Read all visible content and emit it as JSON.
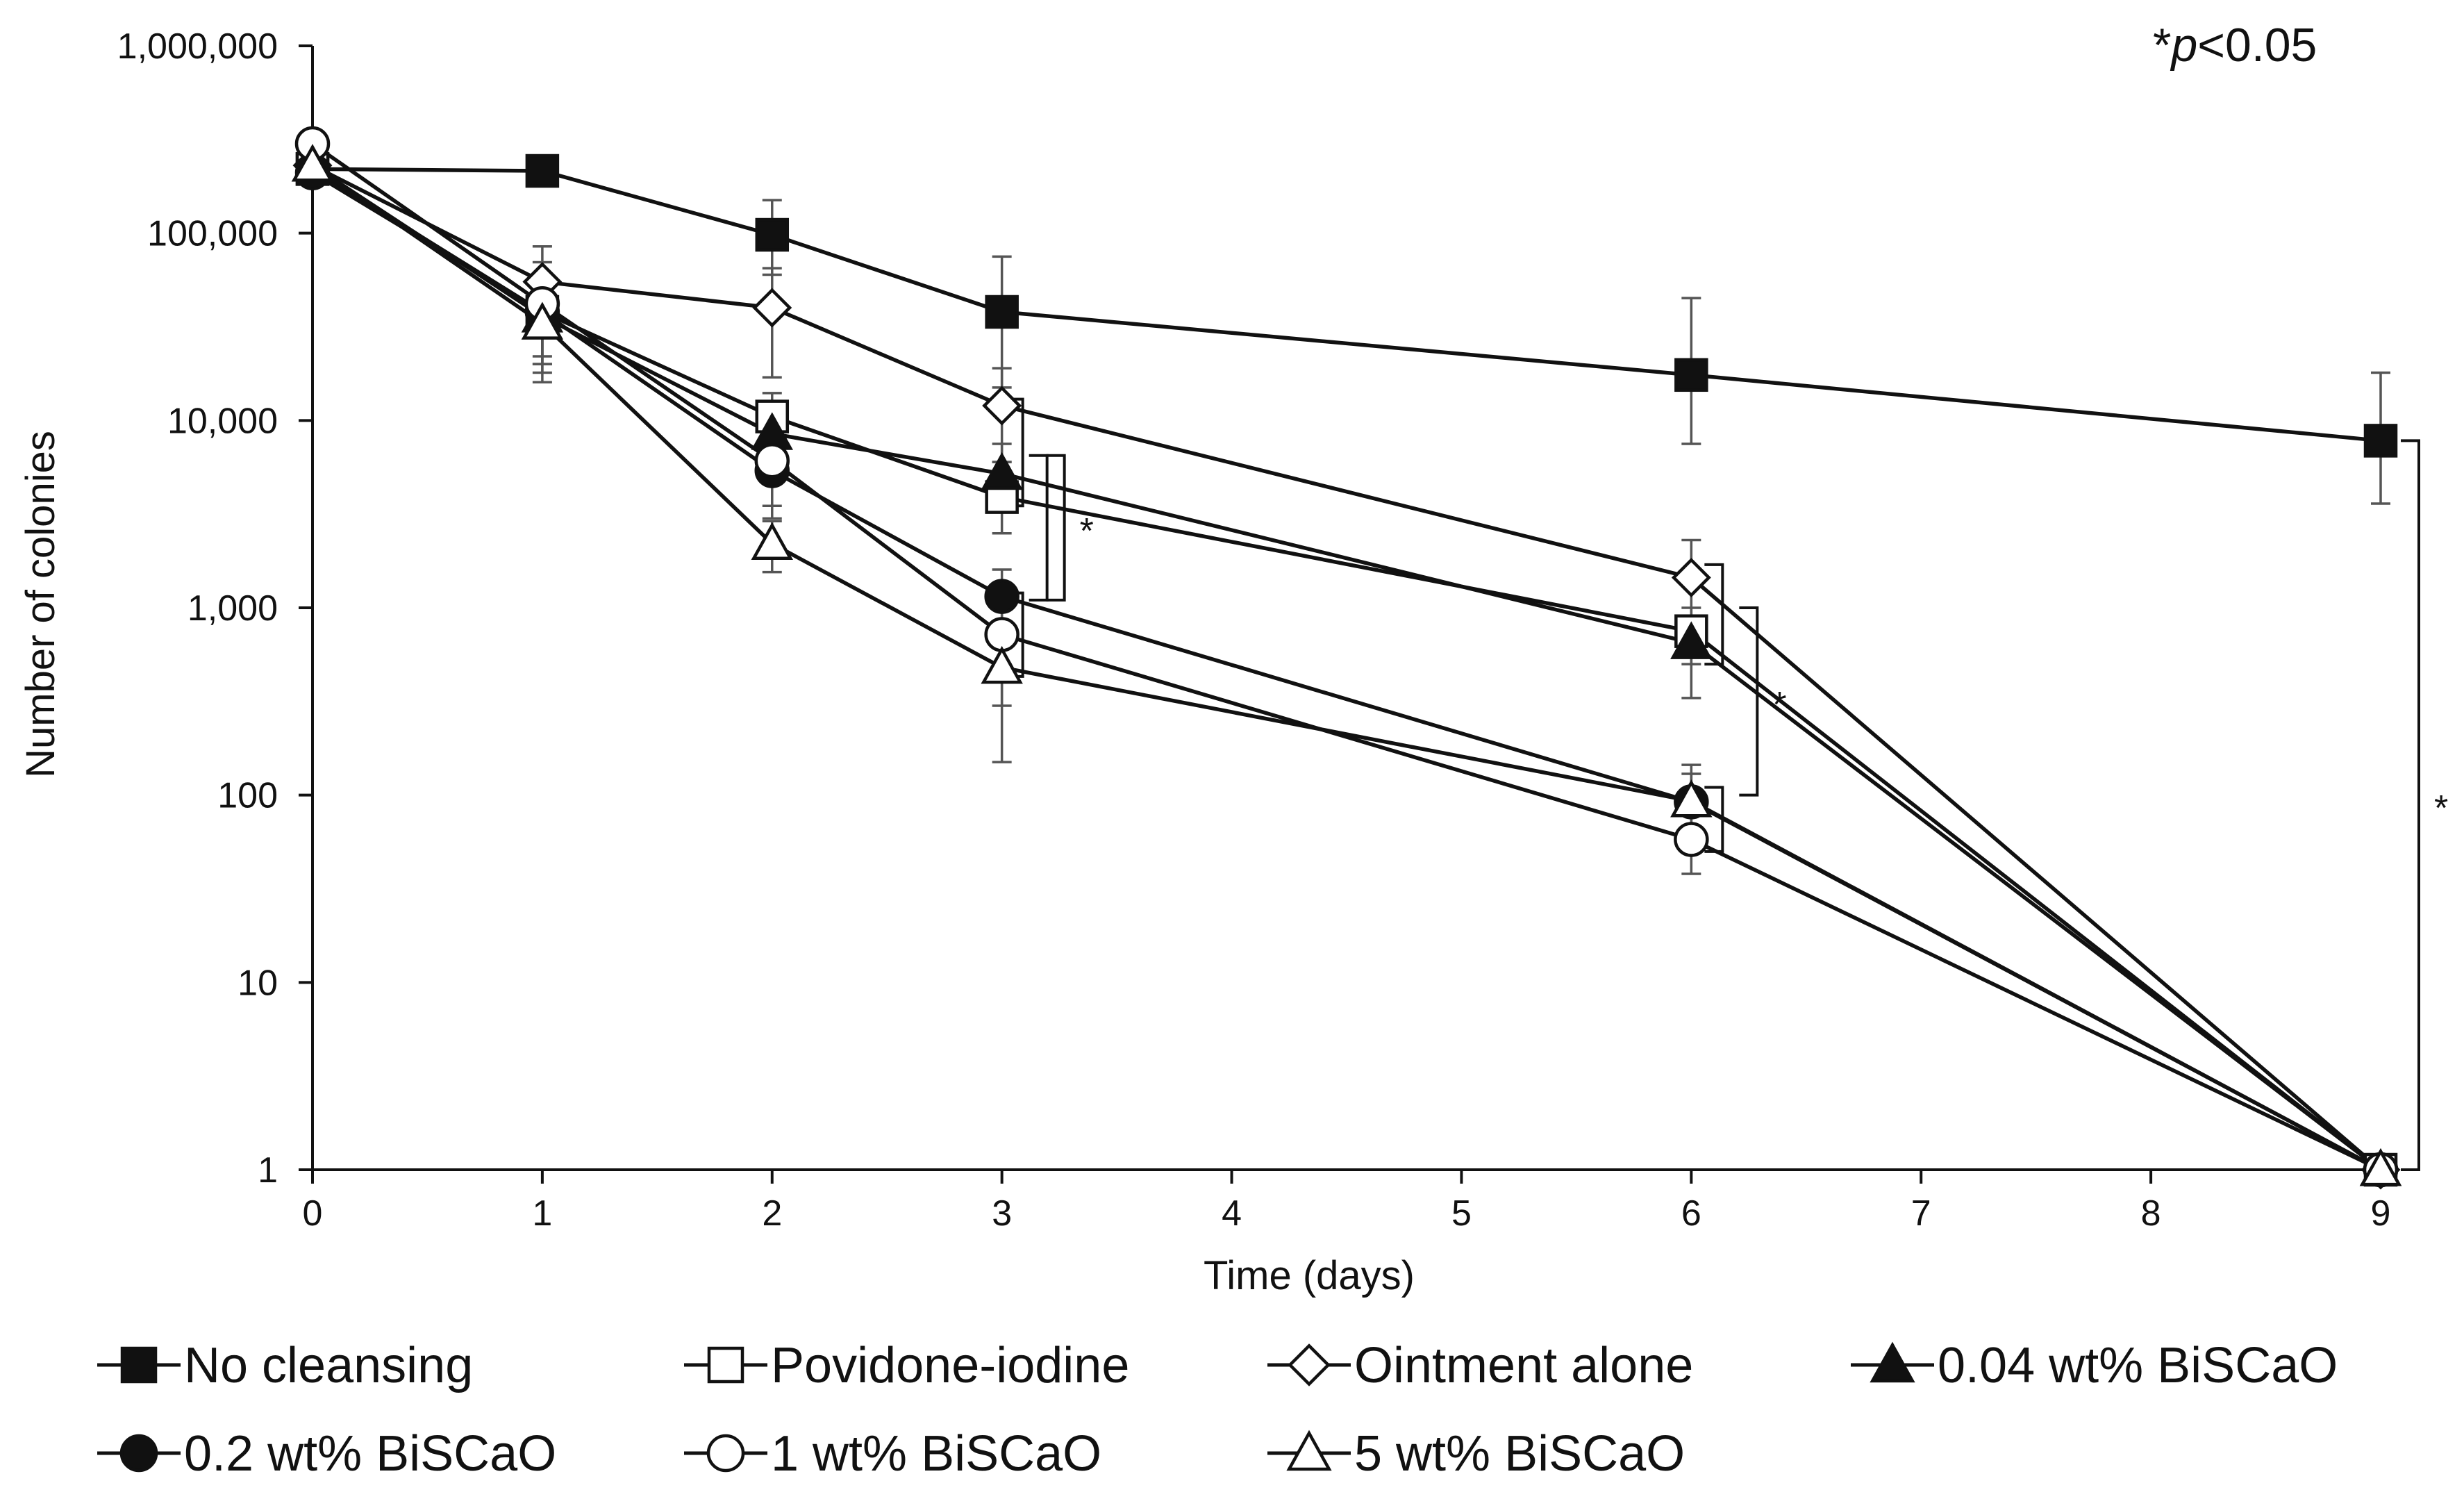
{
  "chart_data": {
    "type": "line",
    "title": "",
    "xlabel": "Time (days)",
    "ylabel": "Number of colonies",
    "yscale": "log",
    "ylim": [
      1,
      1000000
    ],
    "xlim": [
      0,
      9
    ],
    "x_ticks": [
      0,
      1,
      2,
      3,
      4,
      5,
      6,
      7,
      8,
      9
    ],
    "x_tick_labels": [
      "0",
      "1",
      "2",
      "3",
      "4",
      "5",
      "6",
      "7",
      "8",
      "9"
    ],
    "y_ticks": [
      1,
      10,
      100,
      1000,
      10000,
      100000,
      1000000
    ],
    "y_tick_labels": [
      "1",
      "10",
      "100",
      "1,000",
      "10,000",
      "100,000",
      "1,000,000"
    ],
    "grid": false,
    "legend_position": "bottom",
    "significance_note": "*p<0.05",
    "significance_prefix": "*",
    "significance_p": "p",
    "significance_rest": "<0.05",
    "significance_marker": "*",
    "significance_brackets": [
      {
        "x": 3,
        "top": 13000,
        "bottom": 3500
      },
      {
        "x": 3,
        "top": 6500,
        "bottom": 1100
      },
      {
        "x": 3,
        "top": 1200,
        "bottom": 430
      },
      {
        "x": 3,
        "top": 6500,
        "bottom": 1100,
        "marker_text": "*",
        "outer": true
      },
      {
        "x": 6,
        "top": 1700,
        "bottom": 500
      },
      {
        "x": 6,
        "top": 1000,
        "bottom": 100,
        "marker_text": "*",
        "outer": true
      },
      {
        "x": 6,
        "top": 110,
        "bottom": 50
      },
      {
        "x": 9,
        "top": 7800,
        "bottom": 1,
        "marker_text": "*",
        "outer": true
      }
    ],
    "series": [
      {
        "name": "No cleansing",
        "marker": "square",
        "fill": "filled",
        "x": [
          0,
          1,
          2,
          3,
          6,
          9
        ],
        "values": [
          220000,
          215000,
          98000,
          38000,
          17500,
          7800
        ],
        "error_low": [
          null,
          null,
          60000,
          15000,
          7500,
          3600
        ],
        "error_high": [
          null,
          null,
          150000,
          75000,
          45000,
          18000
        ]
      },
      {
        "name": "Povidone-iodine",
        "marker": "square",
        "fill": "open",
        "x": [
          0,
          1,
          2,
          3,
          6,
          9
        ],
        "values": [
          220000,
          38000,
          10500,
          3900,
          750,
          1
        ],
        "error_low": [
          null,
          20000,
          6000,
          2500,
          500,
          null
        ],
        "error_high": [
          null,
          60000,
          14000,
          6000,
          1000,
          null
        ]
      },
      {
        "name": "Ointment alone",
        "marker": "diamond",
        "fill": "open",
        "x": [
          0,
          1,
          2,
          3,
          6,
          9
        ],
        "values": [
          230000,
          55000,
          40000,
          12000,
          1450,
          1
        ],
        "error_low": [
          null,
          30000,
          17000,
          6000,
          900,
          null
        ],
        "error_high": [
          null,
          85000,
          65000,
          19000,
          2300,
          null
        ]
      },
      {
        "name": "0.04 wt% BiSCaO",
        "marker": "triangle",
        "fill": "filled",
        "x": [
          0,
          1,
          2,
          3,
          6,
          9
        ],
        "values": [
          230000,
          36000,
          8500,
          5200,
          650,
          1
        ],
        "error_low": [
          null,
          18000,
          5000,
          3500,
          330,
          null
        ],
        "error_high": [
          null,
          55000,
          12000,
          7500,
          900,
          null
        ]
      },
      {
        "name": "0.2 wt% BiSCaO",
        "marker": "circle",
        "fill": "filled",
        "x": [
          0,
          1,
          2,
          3,
          6,
          9
        ],
        "values": [
          210000,
          38000,
          5400,
          1150,
          92,
          1
        ],
        "error_low": [
          null,
          20000,
          3500,
          500,
          60,
          null
        ],
        "error_high": [
          null,
          55000,
          8000,
          1600,
          130,
          null
        ]
      },
      {
        "name": "1 wt% BiSCaO",
        "marker": "circle",
        "fill": "open",
        "x": [
          0,
          1,
          2,
          3,
          6,
          9
        ],
        "values": [
          300000,
          42000,
          6100,
          720,
          58,
          1
        ],
        "error_low": [
          null,
          22000,
          3000,
          300,
          38,
          null
        ],
        "error_high": [
          null,
          70000,
          9000,
          1200,
          80,
          null
        ]
      },
      {
        "name": "5 wt% BiSCaO",
        "marker": "triangle",
        "fill": "open",
        "x": [
          0,
          1,
          2,
          3,
          6,
          9
        ],
        "values": [
          230000,
          33000,
          2200,
          480,
          93,
          1
        ],
        "error_low": [
          null,
          16000,
          1550,
          150,
          60,
          null
        ],
        "error_high": [
          null,
          50000,
          2900,
          800,
          145,
          null
        ]
      }
    ]
  }
}
